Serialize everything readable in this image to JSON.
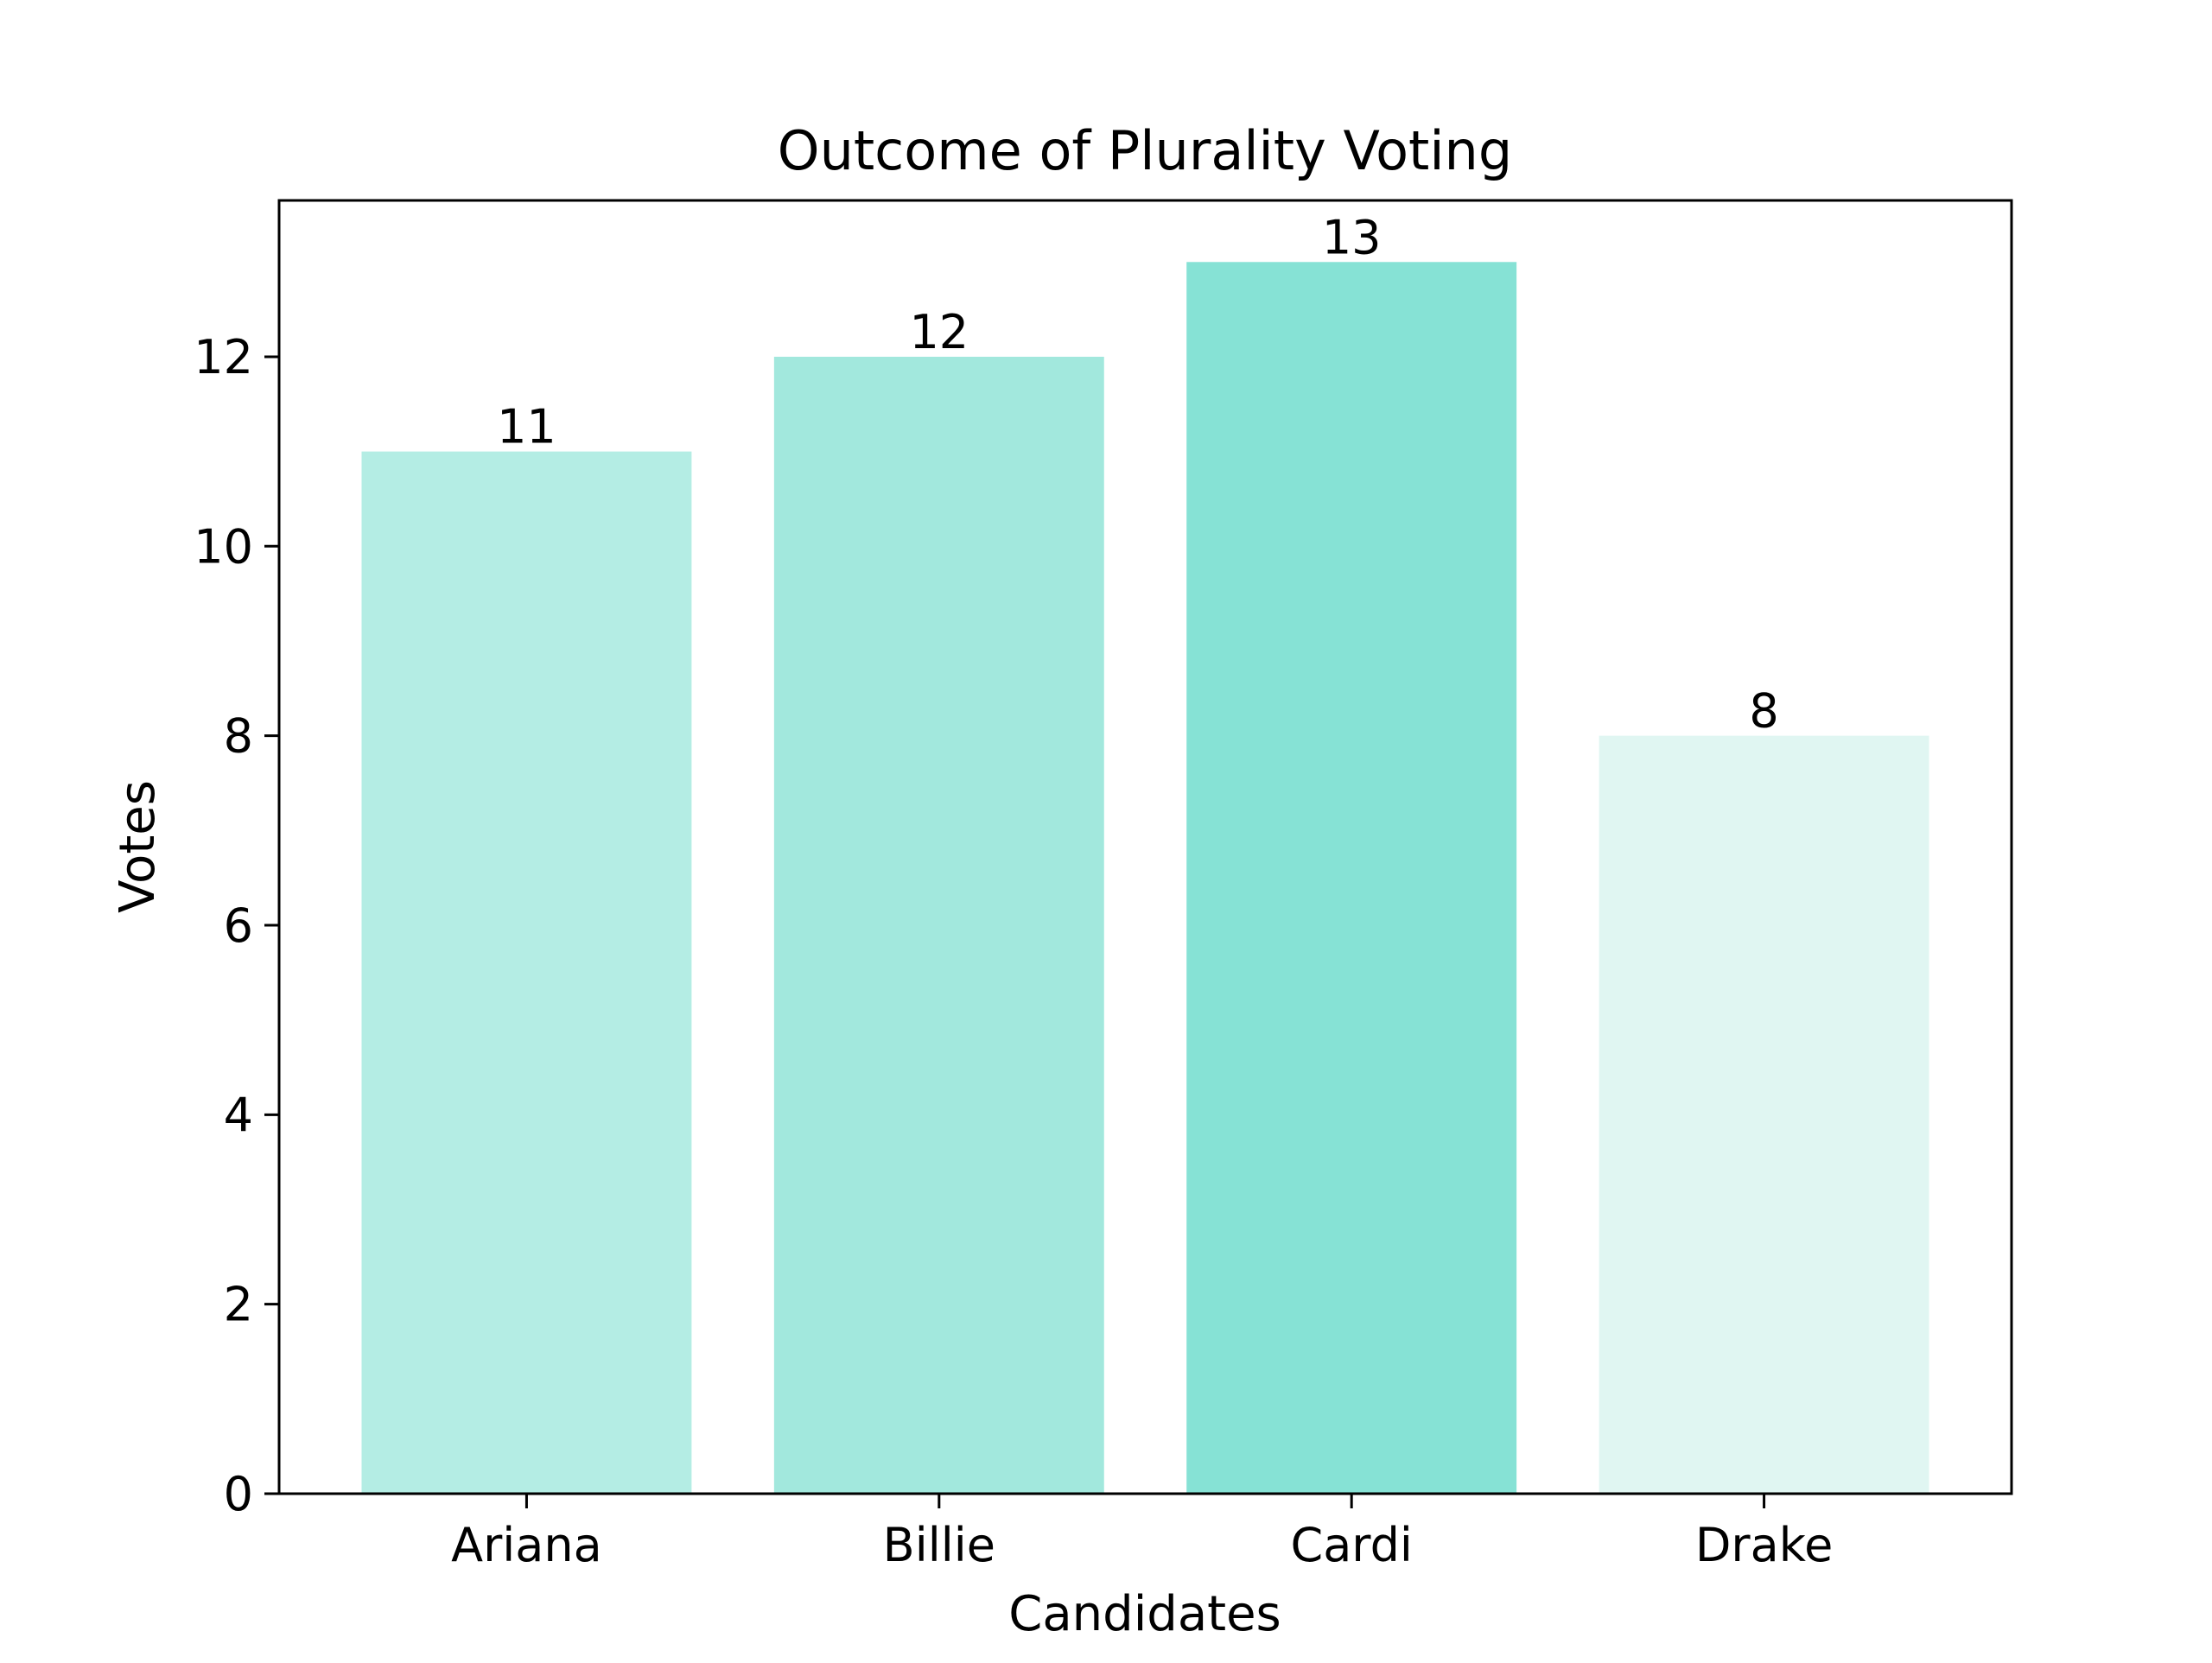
{
  "chart_data": {
    "type": "bar",
    "title": "Outcome of Plurality Voting",
    "xlabel": "Candidates",
    "ylabel": "Votes",
    "categories": [
      "Ariana",
      "Billie",
      "Cardi",
      "Drake"
    ],
    "values": [
      11,
      12,
      13,
      8
    ],
    "value_labels": [
      "11",
      "12",
      "13",
      "8"
    ],
    "colors": [
      "#b4ede4",
      "#a2e8dd",
      "#86e2d5",
      "#e0f6f2"
    ],
    "ylim": [
      0,
      13.65
    ],
    "yticks": [
      0,
      2,
      4,
      6,
      8,
      10,
      12
    ],
    "ytick_labels": [
      "0",
      "2",
      "4",
      "6",
      "8",
      "10",
      "12"
    ],
    "grid": false,
    "legend": "none"
  }
}
